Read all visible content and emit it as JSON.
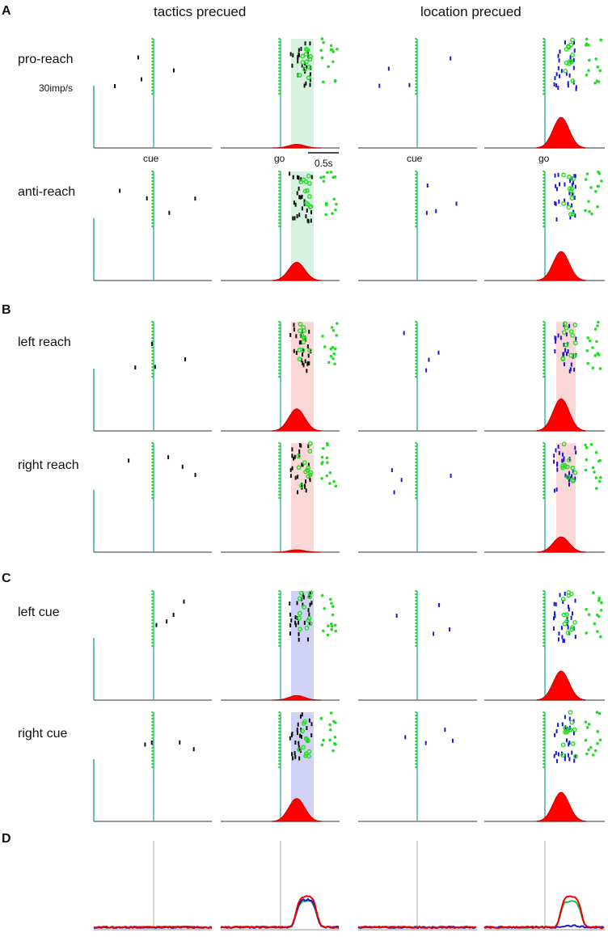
{
  "headers": {
    "left": "tactics precued",
    "right": "location precued"
  },
  "panels": [
    "A",
    "B",
    "C",
    "D"
  ],
  "conditions": [
    "pro-reach",
    "anti-reach",
    "left reach",
    "right reach",
    "left cue",
    "right cue"
  ],
  "event_labels": {
    "cue": "cue",
    "go": "go"
  },
  "scale": {
    "rate": "30imp/s",
    "time": "0.5s"
  },
  "colors": {
    "axis": "#2aa8a8",
    "psth": "#ff0000",
    "spike_tactics": "#111111",
    "spike_location": "#1a1acc",
    "marker": "#22dd22",
    "shade_green": "#cfeedd",
    "shade_red": "#fad0d0",
    "shade_blue": "#c9c9f5",
    "mean_line": "#aaaaaa",
    "trace_red": "#ee0000",
    "trace_blue": "#1a1acc",
    "trace_green": "#22bb55"
  },
  "rows": [
    {
      "condition": "pro-reach",
      "shade": "green",
      "peaks": {
        "tactics_go": 0.12,
        "location_go": 1.0
      }
    },
    {
      "condition": "anti-reach",
      "shade": "green",
      "peaks": {
        "tactics_go": 0.6,
        "location_go": 0.95
      }
    },
    {
      "condition": "left reach",
      "shade": "red",
      "peaks": {
        "tactics_go": 0.72,
        "location_go": 1.05
      }
    },
    {
      "condition": "right reach",
      "shade": "red",
      "peaks": {
        "tactics_go": 0.04,
        "location_go": 0.5
      }
    },
    {
      "condition": "left cue",
      "shade": "blue",
      "peaks": {
        "tactics_go": 0.15,
        "location_go": 0.95
      }
    },
    {
      "condition": "right cue",
      "shade": "blue",
      "peaks": {
        "tactics_go": 0.75,
        "location_go": 0.95
      }
    }
  ],
  "mean_traces": {
    "tactics_go_peak": 1.0,
    "location_go_peak": 1.0
  }
}
